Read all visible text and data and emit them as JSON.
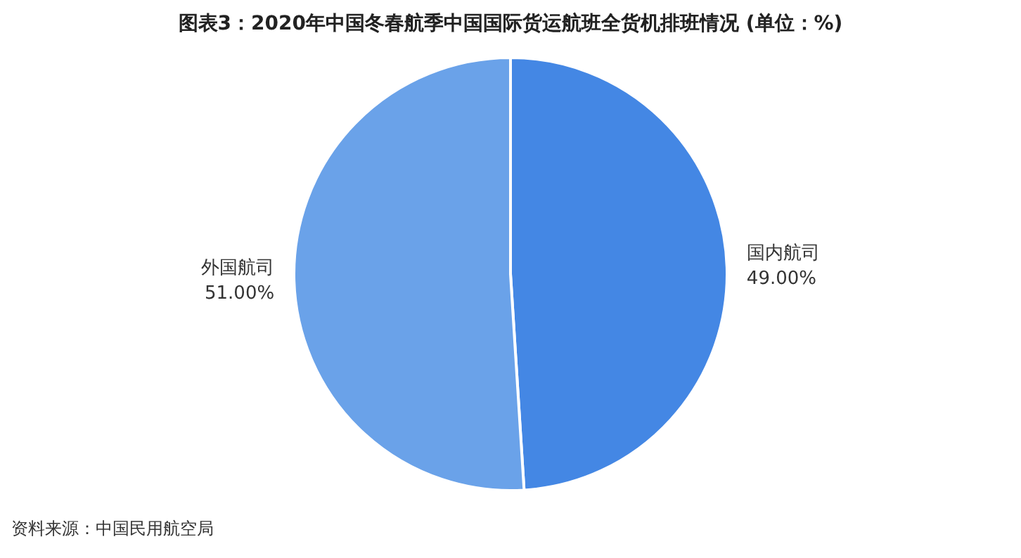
{
  "chart_data": {
    "type": "pie",
    "title": "图表3：2020年中国冬春航季中国国际货运航班全货机排班情况 (单位：%)",
    "categories": [
      "国内航司",
      "外国航司"
    ],
    "values": [
      49,
      51
    ],
    "value_labels": [
      "49.00%",
      "51.00%"
    ],
    "colors": [
      "#4487e4",
      "#6aa2e9"
    ],
    "legend": false,
    "annotations": [
      "资料来源：中国民用航空局"
    ]
  }
}
